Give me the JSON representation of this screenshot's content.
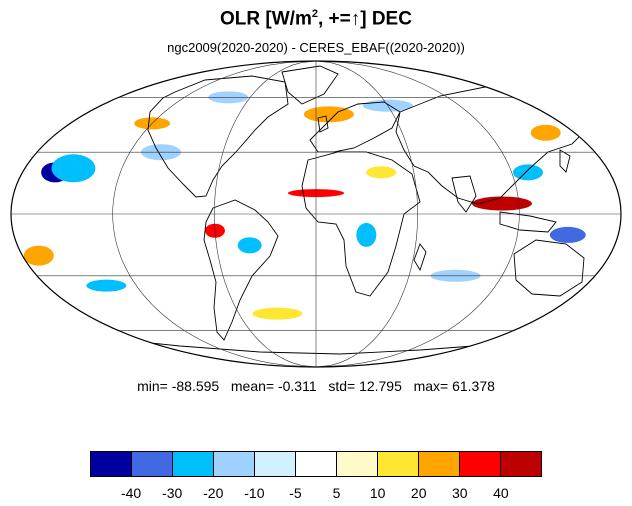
{
  "title": {
    "main": "OLR [W/m",
    "sup": "2",
    "tail": ", +=↑] DEC"
  },
  "subtitle": "ngc2009(2020-2020) - CERES_EBAF((2020-2020))",
  "stats": {
    "min_label": "min=",
    "min": "-88.595",
    "mean_label": "mean=",
    "mean": "-0.311",
    "std_label": "std=",
    "std": "12.795",
    "max_label": "max=",
    "max": "61.378"
  },
  "colorbar": {
    "colors": [
      "#0000a0",
      "#4169e1",
      "#00bfff",
      "#a0d2ff",
      "#d2f0ff",
      "#ffffff",
      "#fffac8",
      "#ffe632",
      "#ffa500",
      "#ff0000",
      "#be0000"
    ],
    "ticks": [
      "-40",
      "-30",
      "-20",
      "-10",
      "-5",
      "5",
      "10",
      "20",
      "30",
      "40"
    ]
  },
  "map": {
    "projection": "mollweide",
    "anomaly_patches": [
      {
        "lon": -160,
        "lat": 20,
        "rx": 14,
        "ry": 10,
        "level": -40
      },
      {
        "lon": -150,
        "lat": 22,
        "rx": 22,
        "ry": 14,
        "level": -20
      },
      {
        "lon": -120,
        "lat": 45,
        "rx": 18,
        "ry": 6,
        "level": 20
      },
      {
        "lon": -100,
        "lat": 30,
        "rx": 20,
        "ry": 8,
        "level": -10
      },
      {
        "lon": -60,
        "lat": -8,
        "rx": 10,
        "ry": 7,
        "level": 30
      },
      {
        "lon": -40,
        "lat": -15,
        "rx": 12,
        "ry": 8,
        "level": -20
      },
      {
        "lon": 0,
        "lat": 10,
        "rx": 28,
        "ry": 4,
        "level": 30
      },
      {
        "lon": 10,
        "lat": 50,
        "rx": 25,
        "ry": 8,
        "level": 20
      },
      {
        "lon": 30,
        "lat": -10,
        "rx": 10,
        "ry": 12,
        "level": -20
      },
      {
        "lon": 110,
        "lat": 5,
        "rx": 30,
        "ry": 7,
        "level": 40
      },
      {
        "lon": 130,
        "lat": 20,
        "rx": 15,
        "ry": 8,
        "level": -20
      },
      {
        "lon": 150,
        "lat": -10,
        "rx": 18,
        "ry": 8,
        "level": -30
      },
      {
        "lon": -170,
        "lat": -20,
        "rx": 15,
        "ry": 10,
        "level": 20
      },
      {
        "lon": -140,
        "lat": -35,
        "rx": 20,
        "ry": 6,
        "level": -20
      },
      {
        "lon": 60,
        "lat": 55,
        "rx": 25,
        "ry": 6,
        "level": -10
      },
      {
        "lon": 90,
        "lat": -30,
        "rx": 25,
        "ry": 6,
        "level": -10
      },
      {
        "lon": -30,
        "lat": -50,
        "rx": 25,
        "ry": 6,
        "level": 10
      },
      {
        "lon": 160,
        "lat": 40,
        "rx": 15,
        "ry": 8,
        "level": 20
      },
      {
        "lon": -80,
        "lat": 60,
        "rx": 20,
        "ry": 6,
        "level": -10
      },
      {
        "lon": 40,
        "lat": 20,
        "rx": 15,
        "ry": 6,
        "level": 10
      }
    ]
  }
}
